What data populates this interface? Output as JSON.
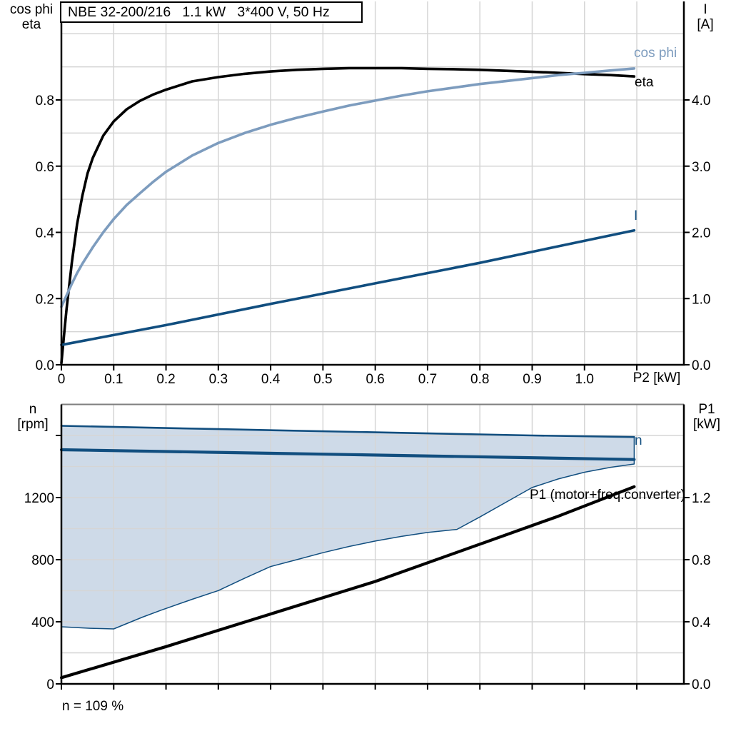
{
  "colors": {
    "background": "#FFFFFF",
    "axis": "#000000",
    "grid": "#D5D5D5",
    "bottom_chart_top_border": "#7F7F7F",
    "eta_black": "#000000",
    "cos_phi_blue": "#7D9CBE",
    "current_blue": "#114E7F",
    "band_fill": "#CEDAE8"
  },
  "chart_data": [
    {
      "type": "line",
      "title": "NBE 32-200/216   1.1 kW   3*400 V, 50 Hz",
      "xlabel": "P2 [kW]",
      "ylabel_left": [
        "cos phi",
        "eta"
      ],
      "ylabel_right": [
        "I",
        "[A]"
      ],
      "xlim": [
        0,
        1.19
      ],
      "ylim_left": [
        0,
        1.0
      ],
      "ylim_right": [
        0,
        5.0
      ],
      "grid": {
        "x_step": 0.1,
        "y_step_left": 0.1
      },
      "x_ticks": {
        "values": [
          0,
          0.1,
          0.2,
          0.3,
          0.4,
          0.5,
          0.6,
          0.7,
          0.8,
          0.9,
          1.0,
          1.1
        ],
        "labels": [
          "0",
          "0.1",
          "0.2",
          "0.3",
          "0.4",
          "0.5",
          "0.6",
          "0.7",
          "0.8",
          "0.9",
          "1.0",
          ""
        ]
      },
      "y_ticks_left": {
        "values": [
          0,
          0.2,
          0.4,
          0.6,
          0.8
        ],
        "labels": [
          "0.0",
          "0.2",
          "0.4",
          "0.6",
          "0.8"
        ]
      },
      "y_ticks_right": {
        "values": [
          0,
          1,
          2,
          3,
          4
        ],
        "labels": [
          "0.0",
          "1.0",
          "2.0",
          "3.0",
          "4.0"
        ]
      },
      "series": [
        {
          "name": "eta",
          "axis": "left",
          "color": "#000000",
          "width": 3.6,
          "points": [
            [
              0,
              0.005
            ],
            [
              0.005,
              0.09
            ],
            [
              0.01,
              0.17
            ],
            [
              0.02,
              0.31
            ],
            [
              0.03,
              0.425
            ],
            [
              0.04,
              0.51
            ],
            [
              0.05,
              0.578
            ],
            [
              0.06,
              0.625
            ],
            [
              0.08,
              0.692
            ],
            [
              0.1,
              0.735
            ],
            [
              0.125,
              0.772
            ],
            [
              0.15,
              0.797
            ],
            [
              0.175,
              0.816
            ],
            [
              0.2,
              0.831
            ],
            [
              0.25,
              0.856
            ],
            [
              0.3,
              0.869
            ],
            [
              0.35,
              0.879
            ],
            [
              0.4,
              0.886
            ],
            [
              0.45,
              0.891
            ],
            [
              0.5,
              0.894
            ],
            [
              0.55,
              0.896
            ],
            [
              0.6,
              0.896
            ],
            [
              0.65,
              0.896
            ],
            [
              0.7,
              0.894
            ],
            [
              0.75,
              0.893
            ],
            [
              0.8,
              0.891
            ],
            [
              0.85,
              0.888
            ],
            [
              0.9,
              0.885
            ],
            [
              0.95,
              0.882
            ],
            [
              1.0,
              0.878
            ],
            [
              1.05,
              0.875
            ],
            [
              1.095,
              0.871
            ]
          ]
        },
        {
          "name": "cos phi",
          "axis": "left",
          "color": "#7D9CBE",
          "width": 3.6,
          "points": [
            [
              0,
              0.175
            ],
            [
              0.01,
              0.21
            ],
            [
              0.02,
              0.245
            ],
            [
              0.03,
              0.277
            ],
            [
              0.04,
              0.305
            ],
            [
              0.05,
              0.33
            ],
            [
              0.06,
              0.355
            ],
            [
              0.08,
              0.4
            ],
            [
              0.1,
              0.44
            ],
            [
              0.125,
              0.483
            ],
            [
              0.15,
              0.518
            ],
            [
              0.175,
              0.552
            ],
            [
              0.2,
              0.583
            ],
            [
              0.25,
              0.632
            ],
            [
              0.3,
              0.67
            ],
            [
              0.35,
              0.7
            ],
            [
              0.4,
              0.725
            ],
            [
              0.45,
              0.746
            ],
            [
              0.5,
              0.765
            ],
            [
              0.55,
              0.783
            ],
            [
              0.6,
              0.798
            ],
            [
              0.65,
              0.813
            ],
            [
              0.7,
              0.826
            ],
            [
              0.75,
              0.837
            ],
            [
              0.8,
              0.848
            ],
            [
              0.85,
              0.857
            ],
            [
              0.9,
              0.866
            ],
            [
              0.95,
              0.875
            ],
            [
              1.0,
              0.882
            ],
            [
              1.05,
              0.889
            ],
            [
              1.095,
              0.895
            ]
          ]
        },
        {
          "name": "I",
          "axis": "right",
          "color": "#114E7F",
          "width": 3.6,
          "points": [
            [
              0,
              0.3
            ],
            [
              0.2,
              0.6
            ],
            [
              0.4,
              0.92
            ],
            [
              0.6,
              1.23
            ],
            [
              0.8,
              1.54
            ],
            [
              0.95,
              1.79
            ],
            [
              1.095,
              2.03
            ]
          ]
        }
      ]
    },
    {
      "type": "line+area",
      "annotation": "n = 109 %",
      "xlabel": "",
      "ylabel_left": [
        "n",
        "[rpm]"
      ],
      "ylabel_right": [
        "P1",
        "[kW]"
      ],
      "xlim": [
        0,
        1.19
      ],
      "ylim_left": [
        0,
        1800
      ],
      "ylim_right": [
        0,
        1.8
      ],
      "grid": {
        "x_step": 0.1,
        "y_step_left": 200
      },
      "x_ticks": {
        "values": [
          0,
          0.1,
          0.2,
          0.3,
          0.4,
          0.5,
          0.6,
          0.7,
          0.8,
          0.9,
          1.0,
          1.1
        ],
        "labels": [
          "",
          "",
          "",
          "",
          "",
          "",
          "",
          "",
          "",
          "",
          "",
          ""
        ]
      },
      "y_ticks_left": {
        "values": [
          0,
          400,
          800,
          1200,
          1600
        ],
        "labels": [
          "0",
          "400",
          "800",
          "1200",
          ""
        ]
      },
      "y_ticks_right": {
        "values": [
          0,
          0.4,
          0.8,
          1.2
        ],
        "labels": [
          "0.0",
          "0.4",
          "0.8",
          "1.2"
        ]
      },
      "series": [
        {
          "name": "speed range band",
          "type": "band",
          "axis": "left",
          "fill": "#CEDAE8",
          "color": "#114E7F",
          "outline_width": 1.5,
          "upper_width": 2.6,
          "upper": [
            [
              0,
              1662
            ],
            [
              0.3,
              1641
            ],
            [
              0.6,
              1620
            ],
            [
              0.9,
              1600
            ],
            [
              1.095,
              1590
            ]
          ],
          "lower": [
            [
              0,
              368
            ],
            [
              0.055,
              358
            ],
            [
              0.1,
              354
            ],
            [
              0.155,
              430
            ],
            [
              0.19,
              474
            ],
            [
              0.25,
              545
            ],
            [
              0.3,
              601
            ],
            [
              0.35,
              680
            ],
            [
              0.4,
              756
            ],
            [
              0.45,
              800
            ],
            [
              0.5,
              845
            ],
            [
              0.55,
              885
            ],
            [
              0.6,
              920
            ],
            [
              0.65,
              950
            ],
            [
              0.7,
              975
            ],
            [
              0.756,
              995
            ],
            [
              0.8,
              1075
            ],
            [
              0.85,
              1170
            ],
            [
              0.9,
              1265
            ],
            [
              0.95,
              1320
            ],
            [
              1.0,
              1363
            ],
            [
              1.05,
              1395
            ],
            [
              1.095,
              1416
            ]
          ]
        },
        {
          "name": "n",
          "axis": "left",
          "color": "#114E7F",
          "width": 4.2,
          "points": [
            [
              0,
              1508
            ],
            [
              0.55,
              1477
            ],
            [
              1.095,
              1445
            ]
          ]
        },
        {
          "name": "P1 (motor+freq.converter)",
          "axis": "right",
          "color": "#000000",
          "width": 4.2,
          "points": [
            [
              0,
              0.04
            ],
            [
              0.2,
              0.24
            ],
            [
              0.4,
              0.45
            ],
            [
              0.6,
              0.66
            ],
            [
              0.8,
              0.9
            ],
            [
              0.95,
              1.08
            ],
            [
              1.095,
              1.27
            ]
          ]
        }
      ]
    }
  ]
}
